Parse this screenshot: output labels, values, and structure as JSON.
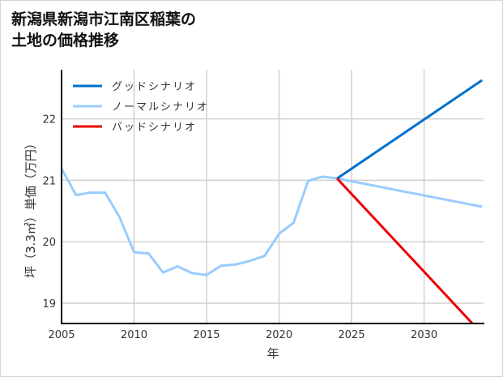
{
  "chart_data": {
    "type": "line",
    "title": "新潟県新潟市江南区稲葉の\n土地の価格推移",
    "xlabel": "年",
    "ylabel": "坪（3.3㎡）単価（万円）",
    "xlim": [
      2005,
      2034.1
    ],
    "ylim": [
      18.67,
      22.8
    ],
    "xticks": [
      2005,
      2010,
      2015,
      2020,
      2025,
      2030
    ],
    "yticks": [
      19,
      20,
      21,
      22
    ],
    "grid": true,
    "legend_position": "top-left",
    "series": [
      {
        "name": "グッドシナリオ",
        "color": "#0070cc",
        "x": [
          2024,
          2034
        ],
        "y": [
          21.03,
          22.63
        ]
      },
      {
        "name": "ノーマルシナリオ",
        "color": "#99ccff",
        "x": [
          2005,
          2006,
          2007,
          2008,
          2009,
          2010,
          2011,
          2012,
          2013,
          2014,
          2015,
          2016,
          2017,
          2018,
          2019,
          2020,
          2021,
          2022,
          2023,
          2024,
          2034
        ],
        "y": [
          21.19,
          20.76,
          20.8,
          20.8,
          20.4,
          19.83,
          19.81,
          19.5,
          19.6,
          19.49,
          19.46,
          19.61,
          19.63,
          19.69,
          19.77,
          20.13,
          20.31,
          20.99,
          21.06,
          21.03,
          20.57
        ]
      },
      {
        "name": "バッドシナリオ",
        "color": "#ee0000",
        "x": [
          2024,
          2034
        ],
        "y": [
          21.03,
          18.5
        ]
      }
    ]
  }
}
